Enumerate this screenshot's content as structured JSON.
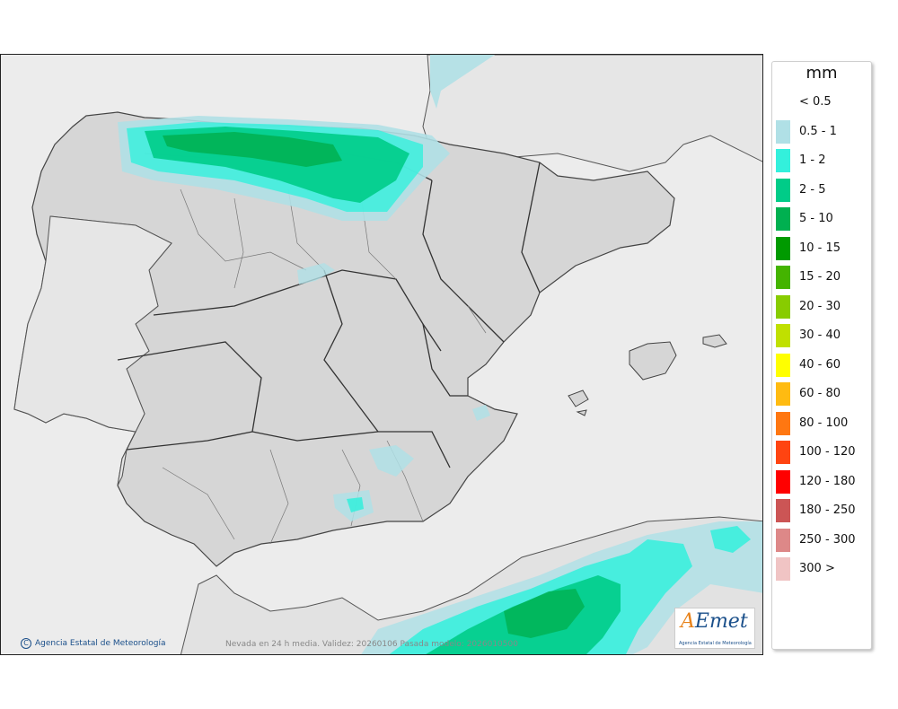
{
  "legend": {
    "unit": "mm",
    "items": [
      {
        "label": "< 0.5",
        "color": "#ffffff"
      },
      {
        "label": "0.5 - 1",
        "color": "#b0e0e6"
      },
      {
        "label": "1 - 2",
        "color": "#33f0dc"
      },
      {
        "label": "2 - 5",
        "color": "#00cc88"
      },
      {
        "label": "5 - 10",
        "color": "#00b050"
      },
      {
        "label": "10 - 15",
        "color": "#009a00"
      },
      {
        "label": "15 - 20",
        "color": "#44b400"
      },
      {
        "label": "20 - 30",
        "color": "#88cc00"
      },
      {
        "label": "30 - 40",
        "color": "#c0e000"
      },
      {
        "label": "40 - 60",
        "color": "#ffff00"
      },
      {
        "label": "60 - 80",
        "color": "#ffbb11"
      },
      {
        "label": "80 - 100",
        "color": "#ff7711"
      },
      {
        "label": "100 - 120",
        "color": "#ff4411"
      },
      {
        "label": "120 - 180",
        "color": "#ff0000"
      },
      {
        "label": "180 - 250",
        "color": "#cc5555"
      },
      {
        "label": "250 - 300",
        "color": "#dd8888"
      },
      {
        "label": "300 >",
        "color": "#f0c4c4"
      }
    ]
  },
  "map": {
    "credit": "Agencia Estatal de Meteorología",
    "caption": "Nevada en 24 h media. Validez: 20260106 Pasada modelo: 2026010500",
    "logo_text": "AEmet",
    "logo_subtext": "Agencia Estatal de Meteorología"
  },
  "colors": {
    "sea": "#ececec",
    "land": "#d6d6d6",
    "border": "#333333"
  }
}
